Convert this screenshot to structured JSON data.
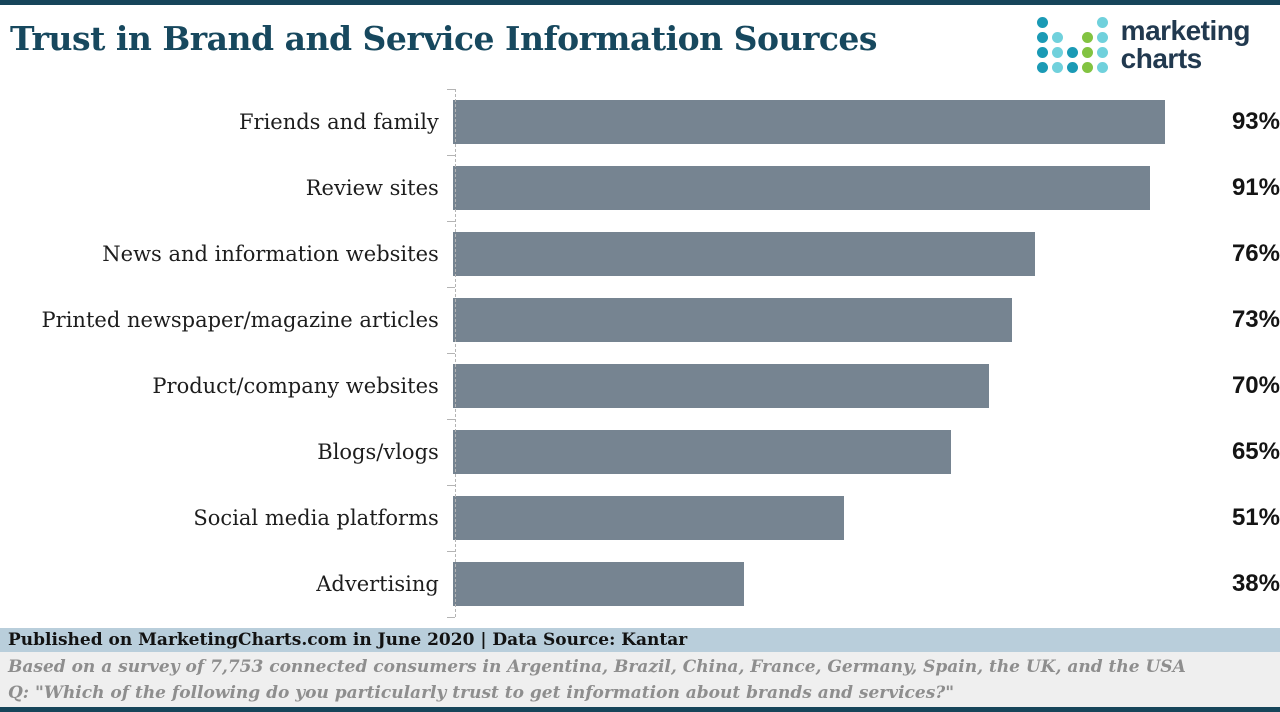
{
  "header": {
    "title": "Trust in Brand and Service Information Sources",
    "logo": {
      "line1": "marketing",
      "line2": "charts",
      "dot_colors": {
        "teal": "#1a9ab5",
        "cyan": "#70d1dc",
        "green": "#82c341"
      },
      "dot_grid": [
        [
          "teal",
          "",
          "",
          "",
          "cyan"
        ],
        [
          "teal",
          "cyan",
          "",
          "green",
          "cyan"
        ],
        [
          "teal",
          "cyan",
          "teal",
          "green",
          "cyan"
        ],
        [
          "teal",
          "cyan",
          "teal",
          "green",
          "cyan"
        ]
      ]
    }
  },
  "chart_data": {
    "type": "bar",
    "orientation": "horizontal",
    "title": "Trust in Brand and Service Information Sources",
    "categories": [
      "Friends and family",
      "Review sites",
      "News and information websites",
      "Printed newspaper/magazine articles",
      "Product/company websites",
      "Blogs/vlogs",
      "Social media platforms",
      "Advertising"
    ],
    "values": [
      93,
      91,
      76,
      73,
      70,
      65,
      51,
      38
    ],
    "value_suffix": "%",
    "xlim": [
      0,
      100
    ],
    "bar_color": "#768491",
    "axis_style": "dashed",
    "grid": false,
    "legend": false
  },
  "footer": {
    "published": "Published on MarketingCharts.com in June 2020 | Data Source: Kantar",
    "survey_note": "Based on a survey of 7,753 connected consumers in Argentina, Brazil, China, France, Germany, Spain, the UK, and the USA",
    "question": "Q: \"Which of the following do you particularly trust to get information about brands and services?\""
  },
  "colors": {
    "page_border": "#16455a",
    "title_text": "#17485e",
    "bar": "#768491",
    "published_band_bg": "#b9cedb",
    "notes_band_bg": "#efefef",
    "notes_text": "#8e8e8e",
    "axis": "#b4b4b4"
  }
}
